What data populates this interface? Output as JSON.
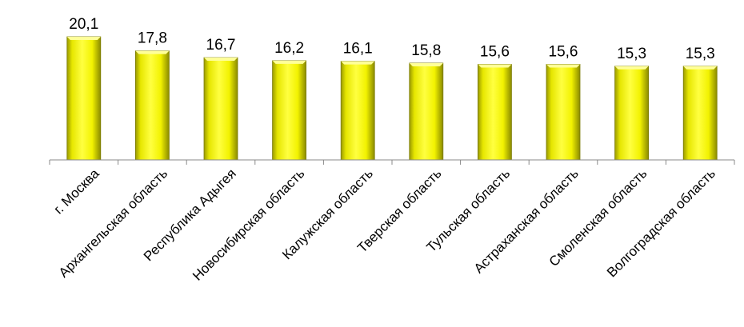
{
  "chart_data": {
    "type": "bar",
    "categories": [
      "г. Москва",
      "Архангельская область",
      "Республика Адыгея",
      "Новосибирская область",
      "Калужская область",
      "Тверская область",
      "Тульская область",
      "Астраханская область",
      "Смоленская область",
      "Волгоградская область"
    ],
    "values": [
      20.1,
      17.8,
      16.7,
      16.2,
      16.1,
      15.8,
      15.6,
      15.6,
      15.3,
      15.3
    ],
    "value_labels": [
      "20,1",
      "17,8",
      "16,7",
      "16,2",
      "16,1",
      "15,8",
      "15,6",
      "15,6",
      "15,3",
      "15,3"
    ],
    "ylim": [
      0,
      20.1
    ],
    "grid": false,
    "legend": "none",
    "colors": {
      "bar": "#ffff00",
      "bar_dark": "#b7b700",
      "axis": "#888888"
    }
  }
}
